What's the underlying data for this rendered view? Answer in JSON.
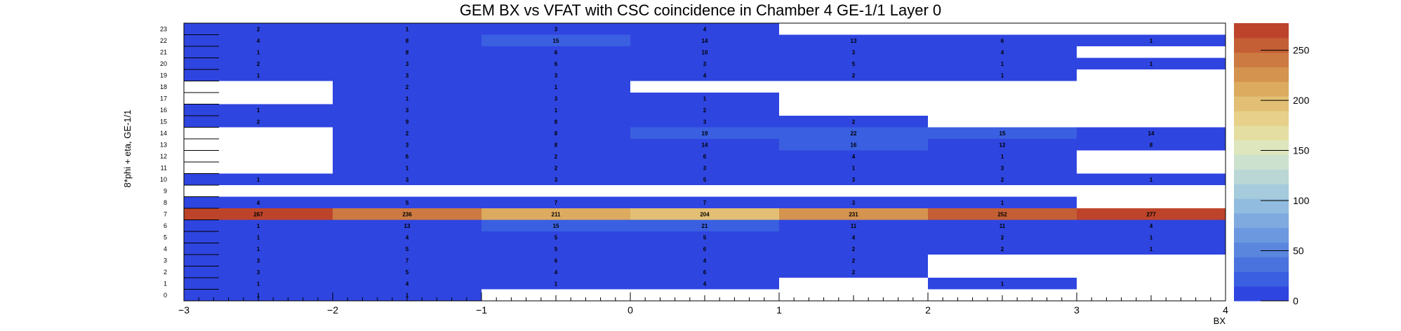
{
  "chart_data": {
    "type": "heatmap",
    "title": "GEM BX vs VFAT with CSC coincidence in Chamber 4 GE-1/1 Layer 0",
    "xlabel": "BX",
    "ylabel": "8*phi + eta, GE-1/1",
    "xlim": [
      -3,
      4
    ],
    "ylim": [
      0,
      24
    ],
    "x_ticks": [
      -3,
      -2,
      -1,
      0,
      1,
      2,
      3,
      4
    ],
    "x_tick_labels": [
      "−3",
      "−2",
      "−1",
      "0",
      "1",
      "2",
      "3",
      "4"
    ],
    "y_categories": [
      "0",
      "1",
      "2",
      "3",
      "4",
      "5",
      "6",
      "7",
      "8",
      "9",
      "10",
      "11",
      "12",
      "13",
      "14",
      "15",
      "16",
      "17",
      "18",
      "19",
      "20",
      "21",
      "22",
      "23"
    ],
    "x_bins": [
      -3,
      -2,
      -1,
      0,
      1,
      2,
      3,
      4
    ],
    "zlim": [
      0,
      277
    ],
    "z_ticks": [
      0,
      50,
      100,
      150,
      200,
      250
    ],
    "cells": [
      {
        "y": 23,
        "values": [
          2,
          1,
          3,
          4,
          null,
          null,
          null
        ]
      },
      {
        "y": 22,
        "values": [
          4,
          8,
          15,
          14,
          13,
          6,
          1
        ]
      },
      {
        "y": 21,
        "values": [
          1,
          8,
          6,
          10,
          3,
          4,
          null
        ]
      },
      {
        "y": 20,
        "values": [
          2,
          3,
          6,
          3,
          5,
          1,
          1
        ]
      },
      {
        "y": 19,
        "values": [
          1,
          3,
          3,
          4,
          2,
          1,
          null
        ]
      },
      {
        "y": 18,
        "values": [
          null,
          2,
          1,
          null,
          null,
          null,
          null
        ]
      },
      {
        "y": 17,
        "values": [
          null,
          1,
          3,
          1,
          null,
          null,
          null
        ]
      },
      {
        "y": 16,
        "values": [
          1,
          3,
          1,
          2,
          null,
          null,
          null
        ]
      },
      {
        "y": 15,
        "values": [
          2,
          9,
          8,
          3,
          2,
          null,
          null
        ]
      },
      {
        "y": 14,
        "values": [
          null,
          2,
          8,
          19,
          22,
          15,
          14
        ]
      },
      {
        "y": 13,
        "values": [
          null,
          3,
          8,
          14,
          16,
          12,
          8
        ]
      },
      {
        "y": 12,
        "values": [
          null,
          6,
          2,
          6,
          4,
          1,
          null
        ]
      },
      {
        "y": 11,
        "values": [
          null,
          1,
          2,
          3,
          1,
          3,
          null
        ]
      },
      {
        "y": 10,
        "values": [
          1,
          3,
          3,
          5,
          3,
          2,
          1
        ]
      },
      {
        "y": 9,
        "values": [
          null,
          null,
          null,
          null,
          null,
          null,
          null
        ]
      },
      {
        "y": 8,
        "values": [
          4,
          5,
          7,
          7,
          3,
          1,
          null
        ]
      },
      {
        "y": 7,
        "values": [
          267,
          236,
          211,
          204,
          231,
          252,
          277
        ]
      },
      {
        "y": 6,
        "values": [
          1,
          13,
          15,
          21,
          11,
          11,
          4
        ]
      },
      {
        "y": 5,
        "values": [
          1,
          4,
          5,
          5,
          4,
          2,
          1
        ]
      },
      {
        "y": 4,
        "values": [
          1,
          5,
          5,
          6,
          2,
          2,
          1
        ]
      },
      {
        "y": 3,
        "values": [
          3,
          7,
          6,
          4,
          2,
          null,
          null
        ]
      },
      {
        "y": 2,
        "values": [
          3,
          5,
          4,
          6,
          2,
          null,
          null
        ]
      },
      {
        "y": 1,
        "values": [
          1,
          4,
          1,
          4,
          null,
          1,
          null
        ]
      },
      {
        "y": 0,
        "values": [
          1,
          1,
          null,
          null,
          null,
          null,
          null
        ]
      }
    ],
    "palette": [
      "#2f45e0",
      "#3a5fe0",
      "#4a73dd",
      "#5a86de",
      "#6c98e0",
      "#7eaae0",
      "#92bcdf",
      "#a6cbdc",
      "#bad7d6",
      "#cde1cf",
      "#dde6bd",
      "#e5dea2",
      "#e6d08a",
      "#e2bf74",
      "#dcab60",
      "#d59350",
      "#cc7a42",
      "#c45e35",
      "#bd442a"
    ]
  }
}
